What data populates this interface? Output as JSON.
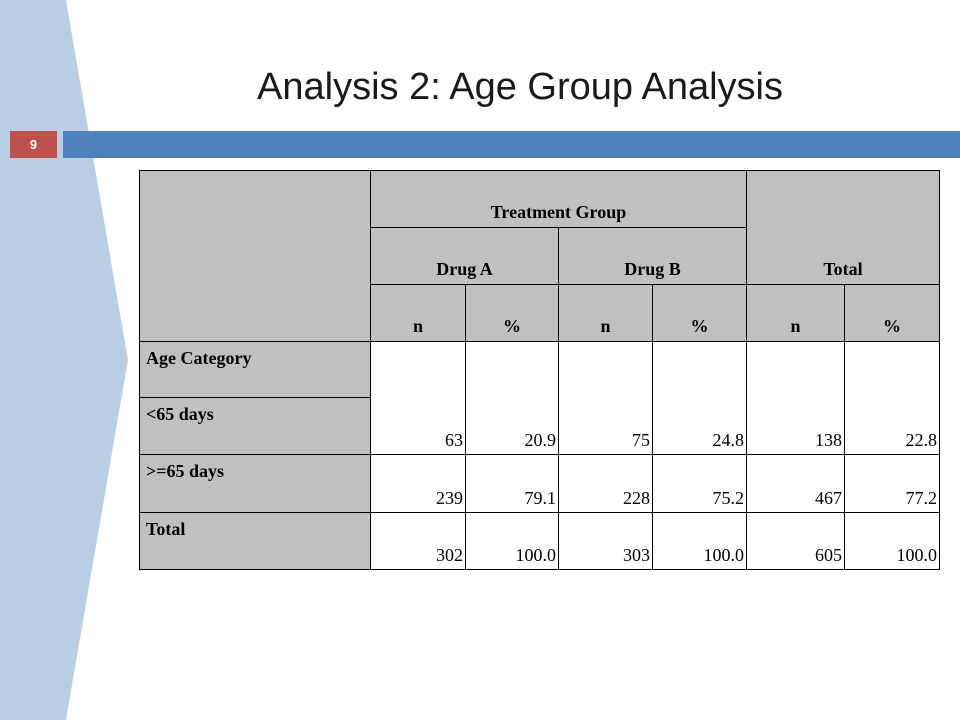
{
  "slide": {
    "title": "Analysis 2: Age Group Analysis",
    "number": "9",
    "colors": {
      "accent_bar": "#4f81bd",
      "number_box": "#c0504d",
      "side_panel": "#b9cde5"
    }
  },
  "table": {
    "group_header": "Treatment Group",
    "drug_a": "Drug A",
    "drug_b": "Drug B",
    "total_header": "Total",
    "sub_headers": [
      "n",
      "%",
      "n",
      "%",
      "n",
      "%"
    ],
    "category_label": "Age Category",
    "rows": [
      {
        "label": "<65 days",
        "values": [
          "63",
          "20.9",
          "75",
          "24.8",
          "138",
          "22.8"
        ]
      },
      {
        "label": ">=65 days",
        "values": [
          "239",
          "79.1",
          "228",
          "75.2",
          "467",
          "77.2"
        ]
      },
      {
        "label": "Total",
        "values": [
          "302",
          "100.0",
          "303",
          "100.0",
          "605",
          "100.0"
        ]
      }
    ]
  }
}
